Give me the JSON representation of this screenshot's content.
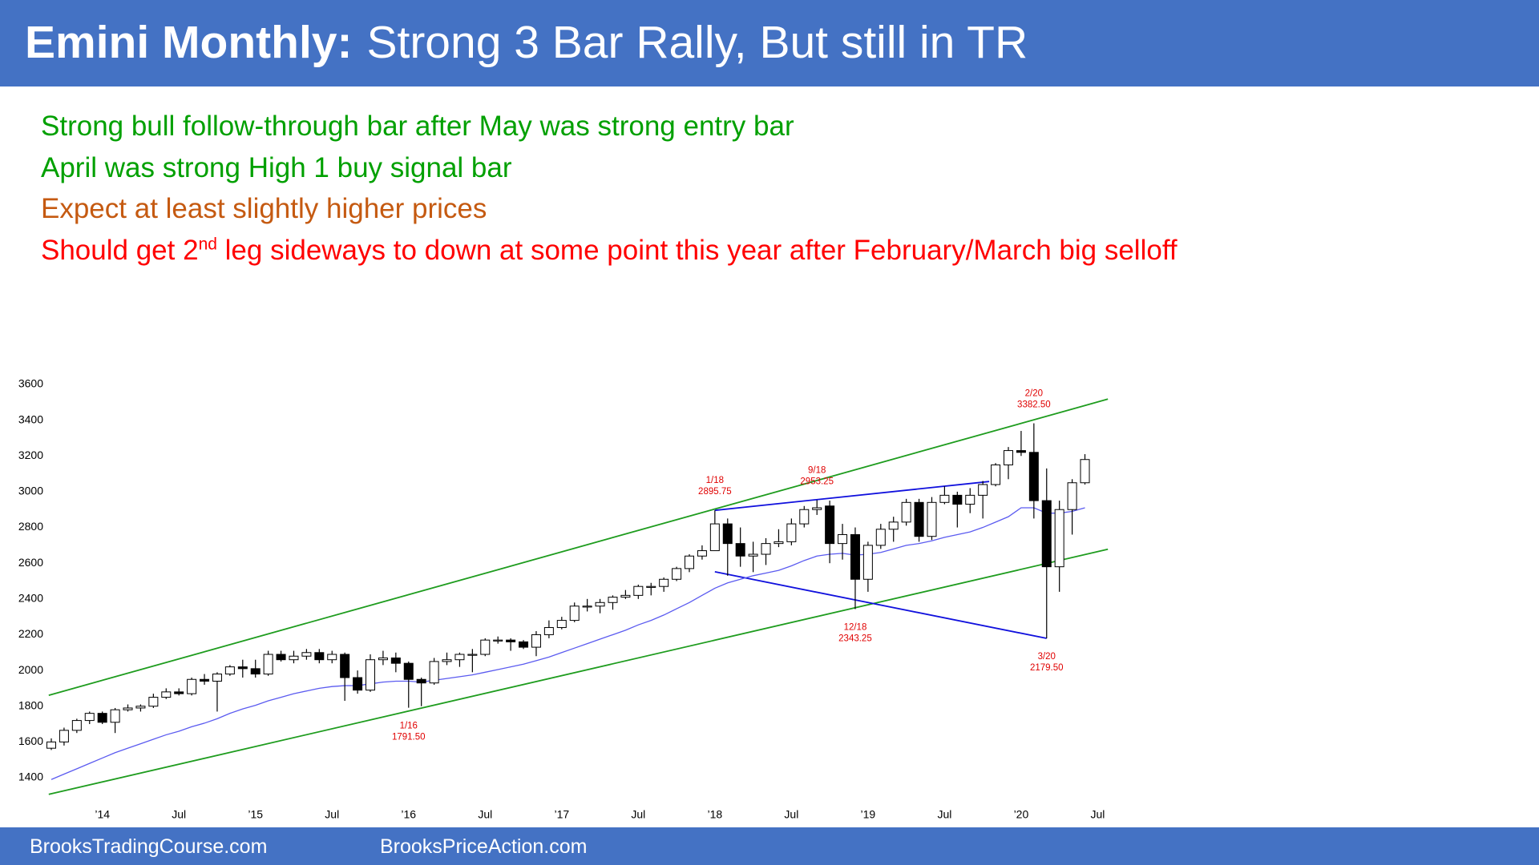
{
  "header": {
    "title_bold": "Emini Monthly:",
    "title": "Strong 3 Bar Rally, But still in TR"
  },
  "notes": [
    {
      "text": "Strong bull follow-through bar after May was strong entry bar",
      "color": "#00a000"
    },
    {
      "text": "April was strong High 1 buy signal bar",
      "color": "#00a000"
    },
    {
      "text": "Expect at least slightly higher prices",
      "color": "#c55a11"
    },
    {
      "text": "Should get 2",
      "sup": "nd",
      "rest": " leg sideways to down at some point this year after February/March big selloff",
      "color": "#ff0000"
    }
  ],
  "footer": {
    "left": "BrooksTradingCourse.com",
    "right": "BrooksPriceAction.com"
  },
  "chart_data": {
    "type": "candlestick",
    "categories": [
      null,
      null,
      null,
      null,
      "’14",
      null,
      null,
      null,
      null,
      null,
      "Jul",
      null,
      null,
      null,
      null,
      null,
      "’15",
      null,
      null,
      null,
      null,
      null,
      "Jul",
      null,
      null,
      null,
      null,
      null,
      "’16",
      null,
      null,
      null,
      null,
      null,
      "Jul",
      null,
      null,
      null,
      null,
      null,
      "’17",
      null,
      null,
      null,
      null,
      null,
      "Jul",
      null,
      null,
      null,
      null,
      null,
      "’18",
      null,
      null,
      null,
      null,
      null,
      "Jul",
      null,
      null,
      null,
      null,
      null,
      "’19",
      null,
      null,
      null,
      null,
      null,
      "Jul",
      null,
      null,
      null,
      null,
      null,
      "’20",
      null,
      null,
      null,
      null,
      null,
      "Jul"
    ],
    "open": [
      1565,
      1600,
      1665,
      1720,
      1760,
      1710,
      1780,
      1790,
      1800,
      1850,
      1880,
      1870,
      1950,
      1940,
      1980,
      2020,
      2010,
      1980,
      2090,
      2060,
      2080,
      2100,
      2060,
      2090,
      1960,
      1890,
      2060,
      2070,
      2040,
      1950,
      1930,
      2050,
      2060,
      2090,
      2090,
      2170,
      2170,
      2160,
      2130,
      2200,
      2240,
      2280,
      2360,
      2360,
      2380,
      2410,
      2420,
      2470,
      2470,
      2510,
      2570,
      2640,
      2670,
      2820,
      2710,
      2640,
      2650,
      2710,
      2720,
      2820,
      2900,
      2920,
      2710,
      2760,
      2510,
      2700,
      2790,
      2830,
      2940,
      2750,
      2940,
      2980,
      2930,
      2980,
      3040,
      3150,
      3230,
      3220,
      2950,
      2580,
      2900,
      3050,
      null
    ],
    "high": [
      1620,
      1680,
      1730,
      1770,
      1770,
      1790,
      1810,
      1810,
      1870,
      1900,
      1900,
      1960,
      1980,
      1990,
      2030,
      2060,
      2060,
      2110,
      2110,
      2110,
      2120,
      2120,
      2110,
      2100,
      2000,
      2090,
      2110,
      2100,
      2050,
      1960,
      2070,
      2100,
      2100,
      2120,
      2180,
      2190,
      2180,
      2170,
      2220,
      2280,
      2300,
      2380,
      2400,
      2400,
      2420,
      2450,
      2480,
      2490,
      2520,
      2580,
      2650,
      2700,
      2895.75,
      2850,
      2800,
      2720,
      2740,
      2790,
      2850,
      2920,
      2953.25,
      2950,
      2820,
      2800,
      2720,
      2820,
      2860,
      2960,
      2960,
      2970,
      3030,
      3000,
      3020,
      3060,
      3160,
      3250,
      3340,
      3382.5,
      3130,
      2950,
      3070,
      3210,
      null
    ],
    "low": [
      1555,
      1580,
      1650,
      1700,
      1700,
      1650,
      1770,
      1770,
      1790,
      1840,
      1860,
      1860,
      1920,
      1770,
      1970,
      1960,
      1960,
      1970,
      2050,
      2040,
      2060,
      2040,
      2040,
      1830,
      1870,
      1880,
      2030,
      1990,
      1791.5,
      1800,
      1920,
      2030,
      2020,
      1990,
      2080,
      2150,
      2110,
      2120,
      2080,
      2180,
      2230,
      2270,
      2330,
      2320,
      2340,
      2400,
      2400,
      2420,
      2440,
      2500,
      2550,
      2620,
      2670,
      2530,
      2580,
      2550,
      2590,
      2690,
      2700,
      2800,
      2870,
      2600,
      2620,
      2343.25,
      2440,
      2680,
      2720,
      2810,
      2720,
      2730,
      2930,
      2800,
      2880,
      2850,
      3030,
      3070,
      3200,
      2850,
      2179.5,
      2440,
      2760,
      3040,
      null
    ],
    "close": [
      1600,
      1665,
      1720,
      1760,
      1710,
      1780,
      1790,
      1800,
      1850,
      1880,
      1870,
      1950,
      1940,
      1980,
      2020,
      2010,
      1980,
      2090,
      2060,
      2080,
      2100,
      2060,
      2090,
      1960,
      1890,
      2060,
      2070,
      2040,
      1950,
      1930,
      2050,
      2060,
      2090,
      2090,
      2170,
      2170,
      2160,
      2130,
      2200,
      2240,
      2280,
      2360,
      2360,
      2380,
      2410,
      2420,
      2470,
      2470,
      2510,
      2570,
      2640,
      2670,
      2820,
      2710,
      2640,
      2650,
      2710,
      2720,
      2820,
      2900,
      2910,
      2710,
      2760,
      2510,
      2700,
      2790,
      2830,
      2940,
      2750,
      2940,
      2980,
      2930,
      2980,
      3040,
      3150,
      3230,
      3220,
      2950,
      2580,
      2900,
      3050,
      3180,
      null
    ],
    "up_color": "#ffffff",
    "down_color": "#000000",
    "ma": {
      "color": "#5b5bf0",
      "values": [
        1390,
        1420,
        1450,
        1480,
        1510,
        1540,
        1565,
        1590,
        1615,
        1640,
        1660,
        1685,
        1705,
        1730,
        1760,
        1785,
        1805,
        1830,
        1850,
        1870,
        1885,
        1900,
        1910,
        1915,
        1915,
        1925,
        1935,
        1940,
        1940,
        1935,
        1945,
        1955,
        1965,
        1975,
        1990,
        2005,
        2020,
        2035,
        2055,
        2075,
        2100,
        2125,
        2150,
        2175,
        2200,
        2225,
        2255,
        2280,
        2310,
        2345,
        2380,
        2420,
        2460,
        2490,
        2510,
        2530,
        2545,
        2560,
        2585,
        2615,
        2640,
        2650,
        2655,
        2645,
        2650,
        2660,
        2680,
        2700,
        2710,
        2725,
        2745,
        2760,
        2775,
        2800,
        2830,
        2860,
        2910,
        2910,
        2880,
        2880,
        2890,
        2910,
        null
      ]
    },
    "trendlines": [
      {
        "color": "#1e9c1e",
        "x": [
          -0.2,
          82.8
        ],
        "y": [
          1861,
          3518
        ]
      },
      {
        "color": "#1e9c1e",
        "x": [
          -0.2,
          82.8
        ],
        "y": [
          1307,
          2678
        ]
      },
      {
        "color": "#1010dd",
        "x": [
          52,
          73.5
        ],
        "y": [
          2895.75,
          3057
        ]
      },
      {
        "color": "#1010dd",
        "x": [
          52,
          78
        ],
        "y": [
          2552,
          2179.5
        ]
      }
    ],
    "annotations": [
      {
        "label": "1/16",
        "value": 1791.5,
        "value_label": "1791.50"
      },
      {
        "label": "1/18",
        "value": 2895.75
      },
      {
        "label": "9/18",
        "value": 2953.25
      },
      {
        "label": "12/18",
        "value": 2343.25
      },
      {
        "label": "2/20",
        "value": 3382.5,
        "value_label": "3382.50"
      },
      {
        "label": "3/20",
        "value": 2179.5,
        "value_label": "2179.50"
      }
    ],
    "ylim": [
      1400,
      3600
    ],
    "yticks": [
      1400,
      1600,
      1800,
      2000,
      2200,
      2400,
      2600,
      2800,
      3000,
      3200,
      3400,
      3600
    ]
  }
}
